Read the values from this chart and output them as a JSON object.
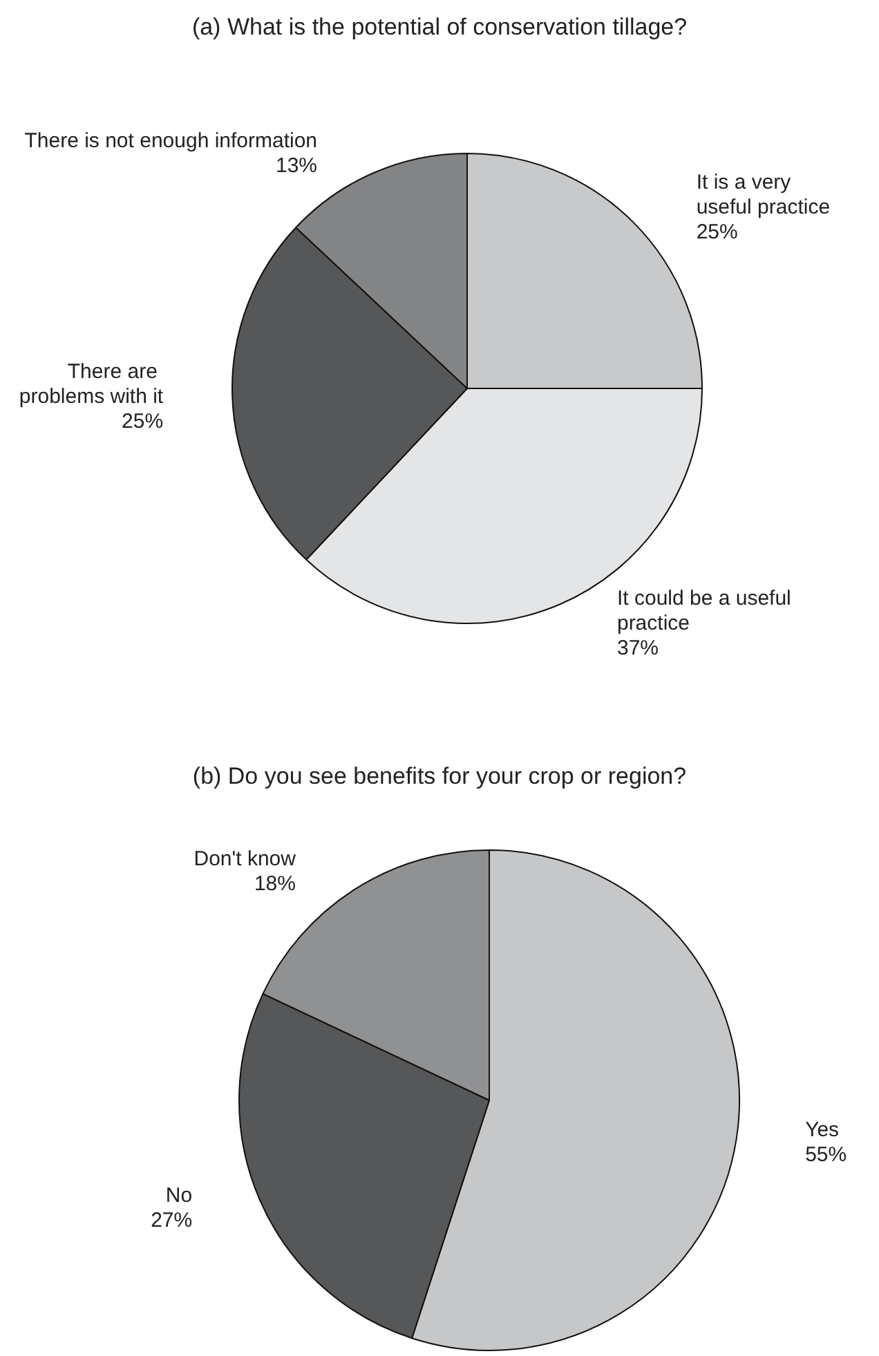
{
  "chart_data": [
    {
      "type": "pie",
      "title": "(a) What is the potential of conservation tillage?",
      "categories": [
        "It is a very useful practice",
        "It could be a useful practice",
        "There are problems with it",
        "There is not enough information"
      ],
      "values": [
        25,
        37,
        25,
        13
      ],
      "value_labels": [
        "25%",
        "37%",
        "25%",
        "13%"
      ],
      "colors": [
        "#c8c9cb",
        "#e4e5e7",
        "#555759",
        "#838486"
      ]
    },
    {
      "type": "pie",
      "title": "(b) Do you see benefits for your crop or region?",
      "categories": [
        "Yes",
        "No",
        "Don't know"
      ],
      "values": [
        55,
        27,
        18
      ],
      "value_labels": [
        "55%",
        "27%",
        "18%"
      ],
      "colors": [
        "#c6c7c9",
        "#555759",
        "#909193"
      ]
    }
  ]
}
